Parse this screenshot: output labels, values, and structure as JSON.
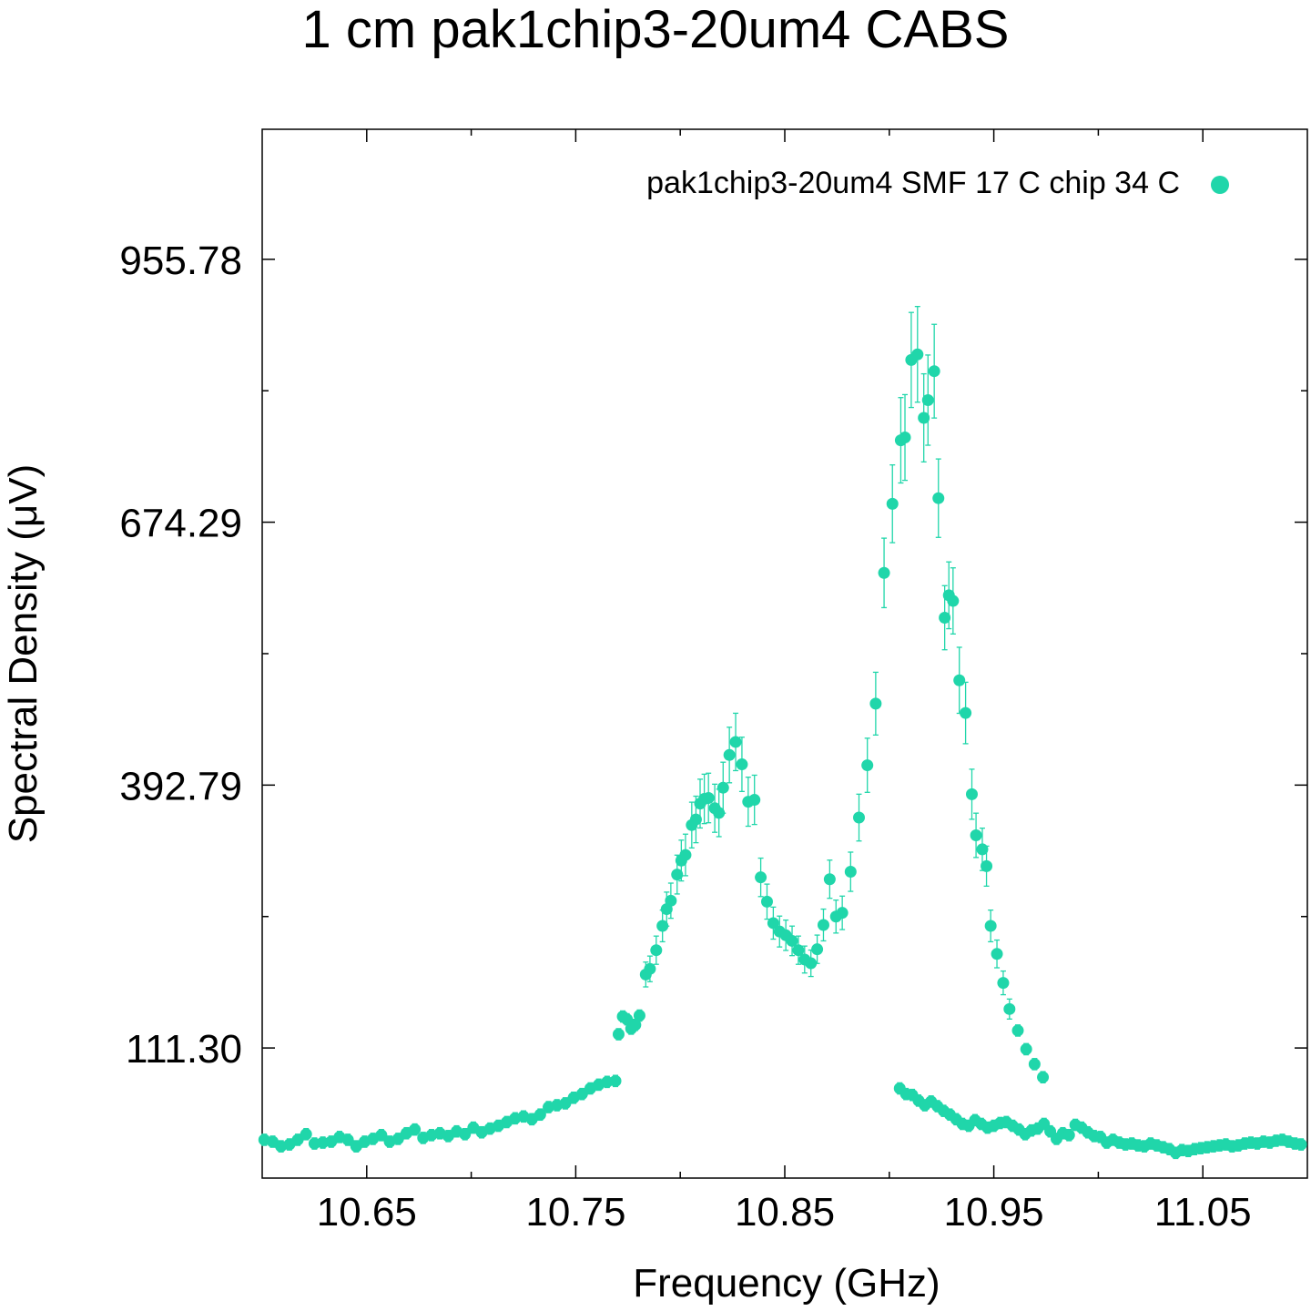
{
  "chart_data": {
    "type": "scatter",
    "title": "1 cm pak1chip3-20um4 CABS",
    "xlabel": "Frequency (GHz)",
    "ylabel": "Spectral Density (μV)",
    "xlim": [
      10.6,
      11.1
    ],
    "ylim": [
      -28,
      1095
    ],
    "x_ticks": [
      {
        "value": 10.65,
        "label": "10.65"
      },
      {
        "value": 10.75,
        "label": "10.75"
      },
      {
        "value": 10.85,
        "label": "10.85"
      },
      {
        "value": 10.95,
        "label": "10.95"
      },
      {
        "value": 11.05,
        "label": "11.05"
      }
    ],
    "x_minor_ticks": [
      10.7,
      10.8,
      10.9,
      11.0
    ],
    "y_ticks": [
      {
        "value": 111.3,
        "label": "111.30"
      },
      {
        "value": 392.79,
        "label": "392.79"
      },
      {
        "value": 674.29,
        "label": "674.29"
      },
      {
        "value": 955.78,
        "label": "955.78"
      }
    ],
    "y_minor_ticks": [
      252.05,
      533.54,
      815.03
    ],
    "grid": false,
    "legend": {
      "position": "top-right"
    },
    "colors": {
      "series": "#20d6aa"
    },
    "series": [
      {
        "name": "pak1chip3-20um4 SMF 17 C chip 34 C",
        "error_bars": true,
        "points": [
          [
            10.601,
            13
          ],
          [
            10.605,
            11
          ],
          [
            10.609,
            6
          ],
          [
            10.613,
            8
          ],
          [
            10.617,
            13
          ],
          [
            10.621,
            19
          ],
          [
            10.625,
            9
          ],
          [
            10.629,
            10
          ],
          [
            10.633,
            11
          ],
          [
            10.637,
            16
          ],
          [
            10.641,
            13
          ],
          [
            10.645,
            6
          ],
          [
            10.649,
            11
          ],
          [
            10.653,
            14
          ],
          [
            10.657,
            18
          ],
          [
            10.661,
            11
          ],
          [
            10.665,
            14
          ],
          [
            10.669,
            20
          ],
          [
            10.673,
            24
          ],
          [
            10.677,
            15
          ],
          [
            10.681,
            18
          ],
          [
            10.685,
            20
          ],
          [
            10.689,
            17
          ],
          [
            10.693,
            22
          ],
          [
            10.697,
            19
          ],
          [
            10.701,
            26
          ],
          [
            10.705,
            21
          ],
          [
            10.709,
            25
          ],
          [
            10.713,
            28
          ],
          [
            10.717,
            32
          ],
          [
            10.721,
            36
          ],
          [
            10.725,
            38
          ],
          [
            10.729,
            35
          ],
          [
            10.733,
            40
          ],
          [
            10.737,
            48
          ],
          [
            10.741,
            50
          ],
          [
            10.745,
            52
          ],
          [
            10.749,
            58
          ],
          [
            10.753,
            62
          ],
          [
            10.757,
            68
          ],
          [
            10.761,
            72
          ],
          [
            10.765,
            75
          ],
          [
            10.769,
            76
          ],
          [
            10.7705,
            126
          ],
          [
            10.7725,
            145
          ],
          [
            10.7745,
            142
          ],
          [
            10.7765,
            132
          ],
          [
            10.7785,
            136
          ],
          [
            10.7805,
            146
          ],
          [
            10.7835,
            190
          ],
          [
            10.7855,
            196
          ],
          [
            10.7885,
            216
          ],
          [
            10.7915,
            242
          ],
          [
            10.7935,
            260
          ],
          [
            10.7955,
            269
          ],
          [
            10.7985,
            297
          ],
          [
            10.8005,
            312
          ],
          [
            10.8025,
            318
          ],
          [
            10.8055,
            350
          ],
          [
            10.8075,
            356
          ],
          [
            10.8095,
            373
          ],
          [
            10.8115,
            378
          ],
          [
            10.8135,
            379
          ],
          [
            10.8165,
            368
          ],
          [
            10.8185,
            363
          ],
          [
            10.8205,
            390
          ],
          [
            10.8235,
            425
          ],
          [
            10.8265,
            439
          ],
          [
            10.8295,
            415
          ],
          [
            10.8325,
            375
          ],
          [
            10.8355,
            377
          ],
          [
            10.8385,
            294
          ],
          [
            10.8415,
            268
          ],
          [
            10.8445,
            245
          ],
          [
            10.8475,
            236
          ],
          [
            10.8505,
            232
          ],
          [
            10.8535,
            226
          ],
          [
            10.8565,
            216
          ],
          [
            10.8595,
            206
          ],
          [
            10.8625,
            202
          ],
          [
            10.8655,
            217
          ],
          [
            10.8685,
            243
          ],
          [
            10.8715,
            292
          ],
          [
            10.8745,
            252
          ],
          [
            10.8775,
            256
          ],
          [
            10.8815,
            300
          ],
          [
            10.8855,
            358
          ],
          [
            10.8895,
            414
          ],
          [
            10.8935,
            480
          ],
          [
            10.8975,
            620
          ],
          [
            10.9015,
            694
          ],
          [
            10.9055,
            762
          ],
          [
            10.9075,
            765
          ],
          [
            10.9105,
            848
          ],
          [
            10.9135,
            854
          ],
          [
            10.9165,
            786
          ],
          [
            10.9185,
            805
          ],
          [
            10.9215,
            836
          ],
          [
            10.9235,
            700
          ],
          [
            10.9265,
            572
          ],
          [
            10.9285,
            596
          ],
          [
            10.9305,
            590
          ],
          [
            10.9335,
            505
          ],
          [
            10.9365,
            470
          ],
          [
            10.9395,
            383
          ],
          [
            10.9415,
            339
          ],
          [
            10.9445,
            324
          ],
          [
            10.9465,
            306
          ],
          [
            10.9485,
            242
          ],
          [
            10.9515,
            212
          ],
          [
            10.9545,
            181
          ],
          [
            10.9575,
            153
          ],
          [
            10.9615,
            130
          ],
          [
            10.9655,
            110
          ],
          [
            10.9695,
            94
          ],
          [
            10.9735,
            80
          ],
          [
            10.905,
            68
          ],
          [
            10.908,
            62
          ],
          [
            10.911,
            61
          ],
          [
            10.914,
            55
          ],
          [
            10.917,
            50
          ],
          [
            10.92,
            54
          ],
          [
            10.923,
            49
          ],
          [
            10.926,
            44
          ],
          [
            10.929,
            40
          ],
          [
            10.932,
            35
          ],
          [
            10.935,
            30
          ],
          [
            10.938,
            28
          ],
          [
            10.941,
            34
          ],
          [
            10.944,
            30
          ],
          [
            10.947,
            26
          ],
          [
            10.95,
            28
          ],
          [
            10.953,
            31
          ],
          [
            10.956,
            32
          ],
          [
            10.959,
            28
          ],
          [
            10.962,
            24
          ],
          [
            10.965,
            19
          ],
          [
            10.968,
            23
          ],
          [
            10.971,
            25
          ],
          [
            10.974,
            30
          ],
          [
            10.977,
            22
          ],
          [
            10.98,
            14
          ],
          [
            10.983,
            20
          ],
          [
            10.986,
            18
          ],
          [
            10.989,
            29
          ],
          [
            10.992,
            26
          ],
          [
            10.995,
            21
          ],
          [
            10.998,
            17
          ],
          [
            11.001,
            16
          ],
          [
            11.004,
            10
          ],
          [
            11.007,
            13
          ],
          [
            11.01,
            10
          ],
          [
            11.013,
            8
          ],
          [
            11.016,
            9
          ],
          [
            11.019,
            7
          ],
          [
            11.022,
            6
          ],
          [
            11.025,
            9
          ],
          [
            11.028,
            7
          ],
          [
            11.031,
            5
          ],
          [
            11.034,
            3
          ],
          [
            11.037,
            -1
          ],
          [
            11.04,
            2
          ],
          [
            11.043,
            1
          ],
          [
            11.046,
            3
          ],
          [
            11.049,
            4
          ],
          [
            11.052,
            5
          ],
          [
            11.055,
            6
          ],
          [
            11.058,
            7
          ],
          [
            11.061,
            8
          ],
          [
            11.064,
            6
          ],
          [
            11.067,
            7
          ],
          [
            11.07,
            9
          ],
          [
            11.073,
            10
          ],
          [
            11.076,
            9
          ],
          [
            11.079,
            11
          ],
          [
            11.082,
            10
          ],
          [
            11.085,
            12
          ],
          [
            11.088,
            13
          ],
          [
            11.091,
            11
          ],
          [
            11.094,
            9
          ],
          [
            11.097,
            8
          ]
        ]
      }
    ]
  }
}
